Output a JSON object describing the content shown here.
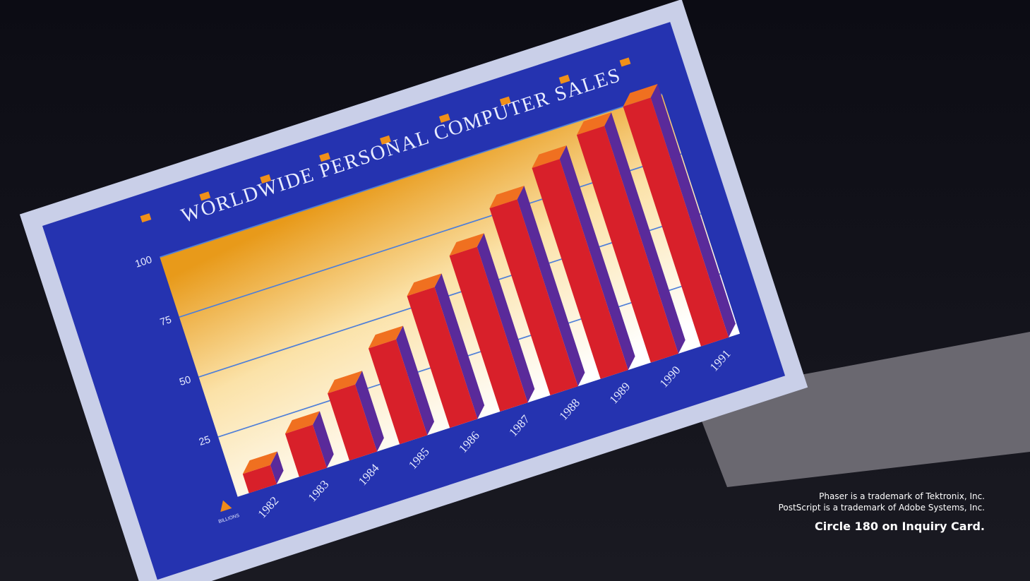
{
  "chart_data": {
    "type": "bar",
    "title": "WORLDWIDE PERSONAL COMPUTER SALES",
    "y_label": "BILLIONS",
    "categories": [
      "1982",
      "1983",
      "1984",
      "1985",
      "1986",
      "1987",
      "1988",
      "1989",
      "1990",
      "1991"
    ],
    "values": [
      8,
      18,
      28,
      40,
      55,
      65,
      78,
      88,
      95,
      100
    ],
    "color": "#d8202a",
    "ylim": [
      0,
      100
    ],
    "yticks": [
      25,
      50,
      75,
      100
    ],
    "grid": true
  },
  "notes": {
    "line1": "Phaser is a trademark of Tektronix, Inc.",
    "line2": "PostScript is a trademark of Adobe Systems, Inc.",
    "line3": "Circle 180 on Inquiry Card."
  }
}
